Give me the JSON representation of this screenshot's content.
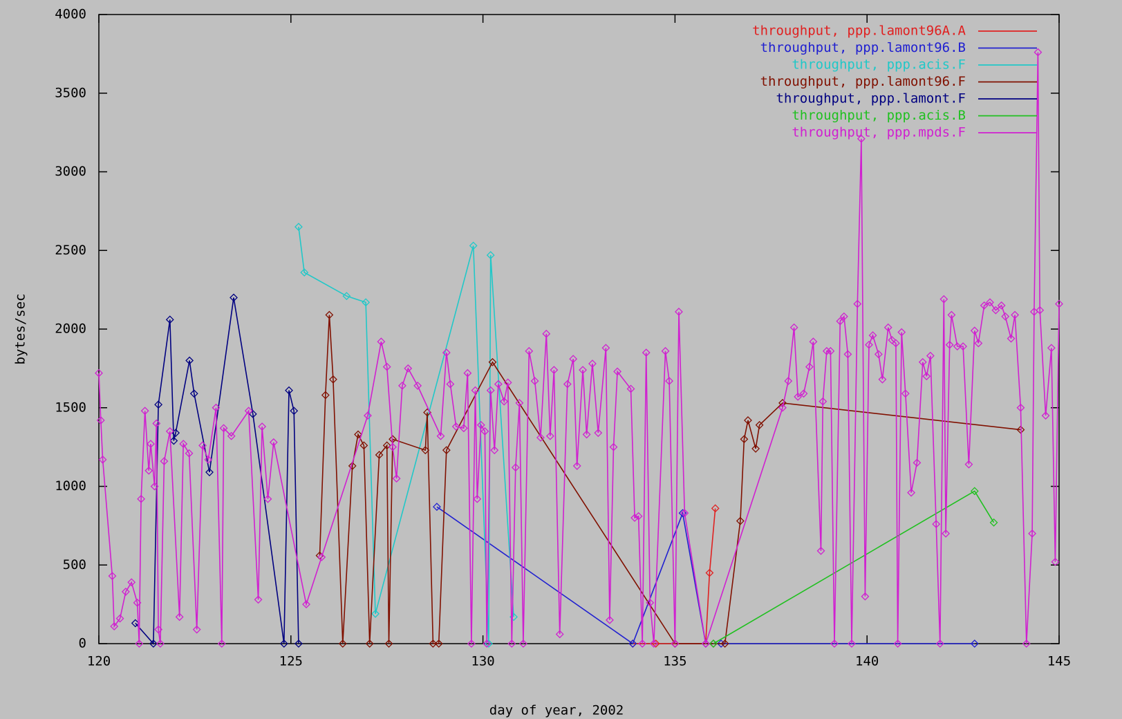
{
  "chart_data": {
    "type": "line",
    "xlabel": "day of year, 2002",
    "ylabel": "bytes/sec",
    "xlim": [
      120,
      145
    ],
    "xticks": [
      120,
      125,
      130,
      135,
      140,
      145
    ],
    "ylim": [
      0,
      4000
    ],
    "yticks": [
      0,
      500,
      1000,
      1500,
      2000,
      2500,
      3000,
      3500,
      4000
    ],
    "legend": "top-right",
    "grid": false,
    "series": [
      {
        "name": "throughput, ppp.lamont96A.A",
        "color": "#e02020",
        "x": [
          133.9,
          134.5,
          135.0,
          135.8,
          135.9,
          136.05
        ],
        "values": [
          0,
          0,
          0,
          0,
          450,
          860
        ]
      },
      {
        "name": "throughput, ppp.lamont96.B",
        "color": "#2020d0",
        "x": [
          128.8,
          133.9,
          135.2,
          135.8,
          136.2,
          142.8
        ],
        "values": [
          870,
          0,
          830,
          0,
          0,
          0
        ]
      },
      {
        "name": "throughput, ppp.acis.F",
        "color": "#20c8c8",
        "x": [
          125.2,
          125.35,
          126.45,
          126.95,
          127.2,
          129.75,
          130.15,
          130.2,
          130.8
        ],
        "values": [
          2650,
          2360,
          2210,
          2170,
          190,
          2530,
          0,
          2470,
          170
        ]
      },
      {
        "name": "throughput, ppp.lamont96.F",
        "color": "#801000",
        "x": [
          125.75,
          125.9,
          126.0,
          126.1,
          126.35,
          126.6,
          126.75,
          126.9,
          127.05,
          127.3,
          127.5,
          127.55,
          127.65,
          128.5,
          128.55,
          128.7,
          128.85,
          129.05,
          130.25,
          135.0,
          136.0,
          136.3,
          136.7,
          136.8,
          136.9,
          137.1,
          137.2,
          137.8,
          144.0
        ],
        "values": [
          560,
          1580,
          2090,
          1680,
          0,
          1130,
          1330,
          1260,
          0,
          1200,
          1260,
          0,
          1300,
          1230,
          1470,
          0,
          0,
          1230,
          1790,
          0,
          0,
          0,
          780,
          1300,
          1420,
          1240,
          1390,
          1530,
          1360
        ]
      },
      {
        "name": "throughput, ppp.lamont.F",
        "color": "#000080",
        "x": [
          120.95,
          121.42,
          121.55,
          121.85,
          121.95,
          122.0,
          122.36,
          122.48,
          122.88,
          123.51,
          124.01,
          124.82,
          124.95,
          125.08,
          125.2
        ],
        "values": [
          130,
          0,
          1520,
          2060,
          1290,
          1340,
          1800,
          1590,
          1090,
          2200,
          1460,
          0,
          1610,
          1480,
          0
        ]
      },
      {
        "name": "throughput, ppp.acis.B",
        "color": "#20c020",
        "x": [
          136.0,
          142.8,
          143.3
        ],
        "values": [
          0,
          970,
          770
        ]
      },
      {
        "name": "throughput, ppp.mpds.F",
        "color": "#d020d0",
        "x": [
          120.0,
          120.05,
          120.1,
          120.35,
          120.4,
          120.55,
          120.7,
          120.85,
          121.0,
          121.05,
          121.1,
          121.2,
          121.3,
          121.35,
          121.45,
          121.5,
          121.55,
          121.6,
          121.7,
          121.85,
          122.1,
          122.2,
          122.35,
          122.55,
          122.7,
          122.85,
          123.05,
          123.2,
          123.25,
          123.45,
          123.9,
          124.15,
          124.25,
          124.4,
          124.55,
          125.4,
          125.8,
          127.0,
          127.35,
          127.5,
          127.65,
          127.75,
          127.9,
          128.05,
          128.3,
          128.9,
          129.05,
          129.15,
          129.3,
          129.5,
          129.6,
          129.7,
          129.8,
          129.85,
          129.95,
          130.05,
          130.1,
          130.2,
          130.3,
          130.4,
          130.55,
          130.65,
          130.75,
          130.85,
          130.95,
          131.05,
          131.2,
          131.35,
          131.5,
          131.65,
          131.75,
          131.85,
          132.0,
          132.2,
          132.35,
          132.45,
          132.6,
          132.7,
          132.85,
          133.0,
          133.2,
          133.3,
          133.4,
          133.5,
          133.85,
          133.95,
          134.05,
          134.15,
          134.25,
          134.35,
          134.45,
          134.75,
          134.85,
          135.0,
          135.1,
          135.25,
          135.8,
          137.8,
          137.95,
          138.1,
          138.2,
          138.35,
          138.5,
          138.6,
          138.8,
          138.85,
          138.95,
          139.05,
          139.15,
          139.3,
          139.4,
          139.5,
          139.6,
          139.75,
          139.85,
          139.95,
          140.05,
          140.15,
          140.3,
          140.4,
          140.55,
          140.65,
          140.75,
          140.8,
          140.9,
          141.0,
          141.15,
          141.3,
          141.45,
          141.55,
          141.65,
          141.8,
          141.9,
          142.0,
          142.05,
          142.15,
          142.2,
          142.35,
          142.5,
          142.65,
          142.8,
          142.9,
          143.05,
          143.2,
          143.35,
          143.5,
          143.6,
          143.75,
          143.85,
          144.0,
          144.15,
          144.3,
          144.35,
          144.45,
          144.5,
          144.65,
          144.8,
          144.9,
          145.0
        ],
        "values": [
          1720,
          1420,
          1170,
          430,
          110,
          160,
          330,
          390,
          260,
          0,
          920,
          1480,
          1100,
          1270,
          1000,
          1400,
          90,
          0,
          1160,
          1350,
          170,
          1270,
          1210,
          90,
          1260,
          1170,
          1500,
          0,
          1370,
          1320,
          1480,
          280,
          1380,
          920,
          1280,
          250,
          550,
          1450,
          1920,
          1760,
          1250,
          1050,
          1640,
          1750,
          1640,
          1320,
          1850,
          1650,
          1380,
          1370,
          1720,
          0,
          1610,
          920,
          1390,
          1350,
          0,
          1610,
          1230,
          1650,
          1540,
          1660,
          0,
          1120,
          1530,
          0,
          1860,
          1670,
          1310,
          1970,
          1320,
          1740,
          60,
          1650,
          1810,
          1130,
          1740,
          1330,
          1780,
          1340,
          1880,
          150,
          1250,
          1730,
          1620,
          800,
          810,
          0,
          1850,
          260,
          0,
          1860,
          1670,
          0,
          2110,
          830,
          0,
          1500,
          1670,
          2010,
          1570,
          1590,
          1760,
          1920,
          590,
          1540,
          1860,
          1860,
          0,
          2050,
          2080,
          1840,
          0,
          2160,
          3210,
          300,
          1900,
          1960,
          1840,
          1680,
          2010,
          1930,
          1910,
          0,
          1980,
          1590,
          960,
          1150,
          1790,
          1700,
          1830,
          760,
          0,
          2190,
          700,
          1900,
          2090,
          1890,
          1890,
          1140,
          1990,
          1910,
          2150,
          2170,
          2120,
          2150,
          2080,
          1940,
          2090,
          1500,
          0,
          700,
          2110,
          3760,
          2120,
          1450,
          1880,
          520,
          2160
        ]
      }
    ]
  }
}
